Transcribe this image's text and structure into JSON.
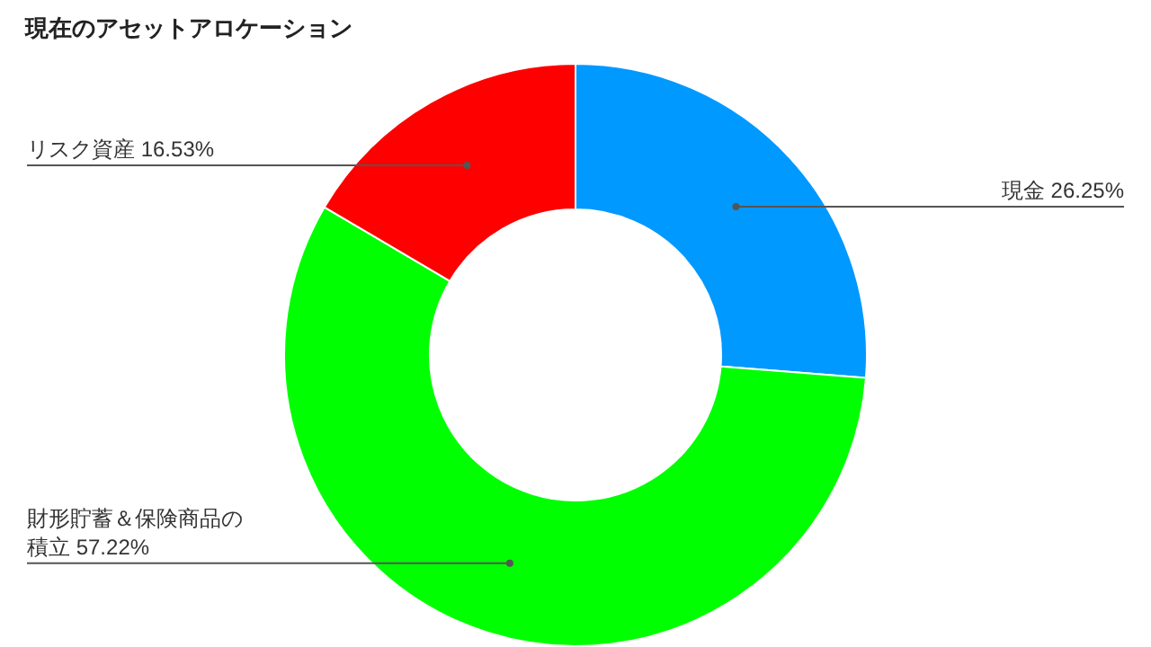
{
  "chart_data": {
    "type": "donut",
    "title": "現在のアセットアロケーション",
    "categories": [
      "現金",
      "財形貯蓄＆保険商品の積立",
      "リスク資産"
    ],
    "values": [
      26.25,
      57.22,
      16.53
    ],
    "value_labels": [
      "26.25%",
      "57.22%",
      "16.53%"
    ],
    "colors": [
      "#0099ff",
      "#00ff00",
      "#ff0000"
    ],
    "legend": false
  }
}
